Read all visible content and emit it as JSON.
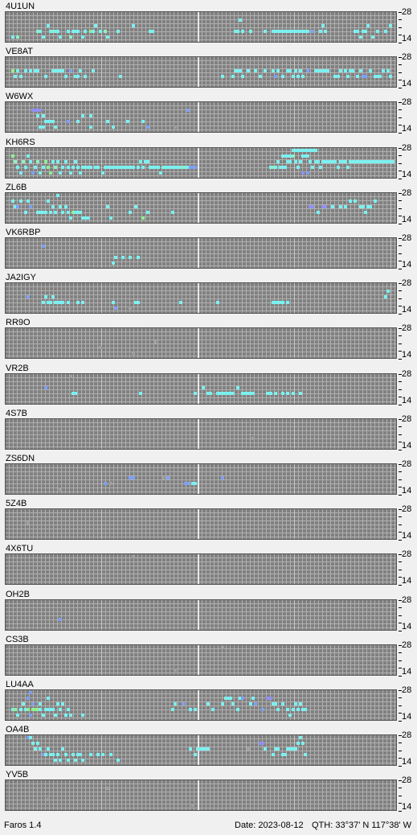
{
  "colors": {
    "grid_bg": "#808080",
    "cyan": "#7cf0f0",
    "mint": "#90f0c0",
    "green": "#90f090",
    "blue": "#7ea0f4",
    "purple": "#9090f0",
    "gray": "#a0a0a0"
  },
  "scale": {
    "top": "28",
    "bottom": "14"
  },
  "beacons": [
    {
      "name": "4U1UN"
    },
    {
      "name": "VE8AT"
    },
    {
      "name": "W6WX"
    },
    {
      "name": "KH6RS"
    },
    {
      "name": "ZL6B"
    },
    {
      "name": "VK6RBP"
    },
    {
      "name": "JA2IGY"
    },
    {
      "name": "RR9O"
    },
    {
      "name": "VR2B"
    },
    {
      "name": "4S7B"
    },
    {
      "name": "ZS6DN"
    },
    {
      "name": "5Z4B"
    },
    {
      "name": "4X6TU"
    },
    {
      "name": "OH2B"
    },
    {
      "name": "CS3B"
    },
    {
      "name": "LU4AA"
    },
    {
      "name": "OA4B"
    },
    {
      "name": "YV5B"
    }
  ],
  "status": {
    "app_name": "Faros 1.4",
    "date": "Date: 2023-08-12",
    "qth": "QTH: 33°37' N  117°38' W"
  }
}
